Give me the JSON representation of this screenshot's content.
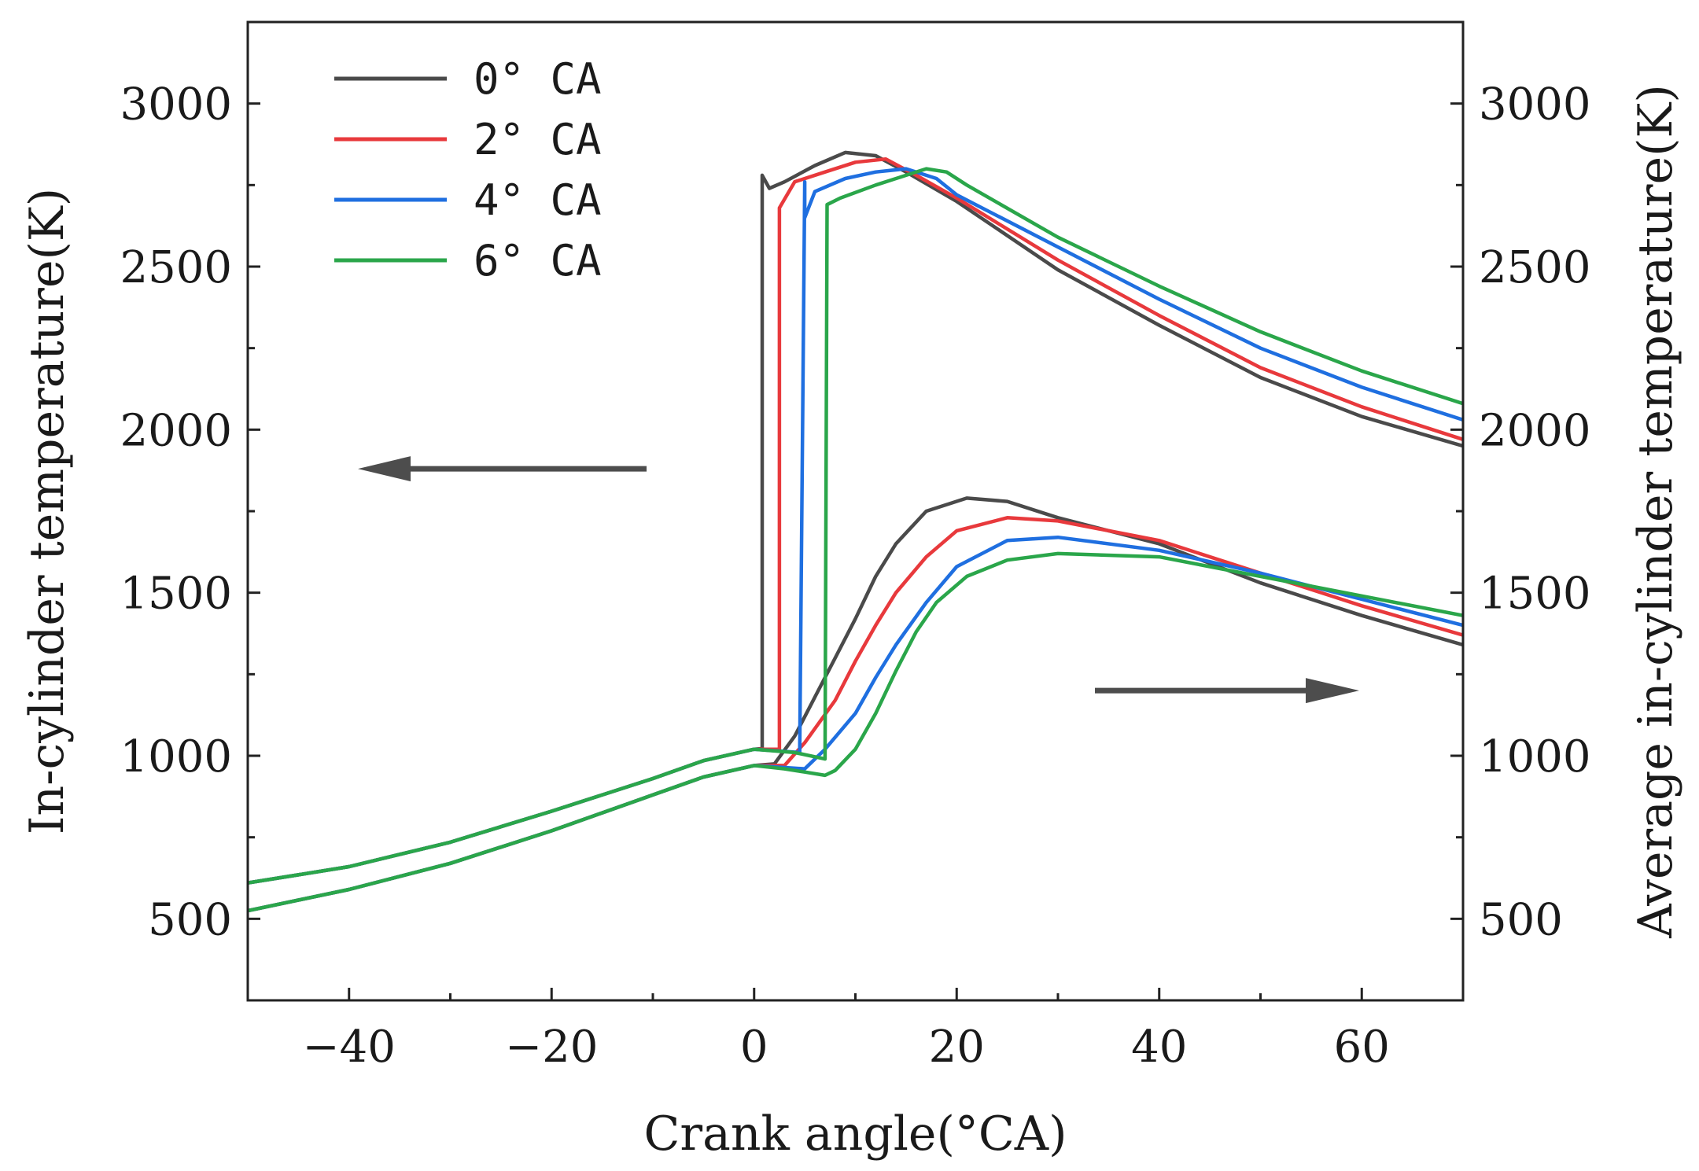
{
  "chart_data": {
    "type": "line",
    "xlabel": "Crank angle(°CA)",
    "ylabel_left": "In-cylinder temperature(K)",
    "ylabel_right": "Average in-cylinder temperature(K)",
    "xlim": [
      -50,
      70
    ],
    "ylim": [
      250,
      3250
    ],
    "x_ticks": [
      -40,
      -20,
      0,
      20,
      40,
      60
    ],
    "y_ticks": [
      500,
      1000,
      1500,
      2000,
      2500,
      3000
    ],
    "legend_position": "top-left",
    "annotations": [
      {
        "type": "arrow",
        "direction": "left",
        "meaning": "left axis"
      },
      {
        "type": "arrow",
        "direction": "right",
        "meaning": "right axis"
      }
    ],
    "series": [
      {
        "name": "0° CA",
        "color": "#4a4a4a",
        "upper": [
          [
            -50,
            610
          ],
          [
            -40,
            660
          ],
          [
            -30,
            735
          ],
          [
            -20,
            830
          ],
          [
            -10,
            930
          ],
          [
            -5,
            985
          ],
          [
            0,
            1020
          ],
          [
            0.8,
            1022
          ],
          [
            0.8,
            2780
          ],
          [
            1.5,
            2740
          ],
          [
            3,
            2760
          ],
          [
            6,
            2810
          ],
          [
            9,
            2850
          ],
          [
            12,
            2840
          ],
          [
            15,
            2790
          ],
          [
            20,
            2700
          ],
          [
            30,
            2490
          ],
          [
            40,
            2320
          ],
          [
            50,
            2160
          ],
          [
            60,
            2040
          ],
          [
            70,
            1950
          ]
        ],
        "lower": [
          [
            -50,
            525
          ],
          [
            -40,
            590
          ],
          [
            -30,
            670
          ],
          [
            -20,
            770
          ],
          [
            -10,
            880
          ],
          [
            -5,
            935
          ],
          [
            0,
            970
          ],
          [
            2,
            975
          ],
          [
            4,
            1060
          ],
          [
            6,
            1180
          ],
          [
            8,
            1300
          ],
          [
            10,
            1420
          ],
          [
            12,
            1550
          ],
          [
            14,
            1650
          ],
          [
            17,
            1750
          ],
          [
            21,
            1790
          ],
          [
            25,
            1780
          ],
          [
            30,
            1730
          ],
          [
            40,
            1650
          ],
          [
            50,
            1530
          ],
          [
            60,
            1430
          ],
          [
            70,
            1340
          ]
        ]
      },
      {
        "name": "2° CA",
        "color": "#e8393c",
        "upper": [
          [
            -50,
            610
          ],
          [
            -40,
            660
          ],
          [
            -30,
            735
          ],
          [
            -20,
            830
          ],
          [
            -10,
            930
          ],
          [
            -5,
            985
          ],
          [
            0,
            1020
          ],
          [
            2.5,
            1020
          ],
          [
            2.5,
            2680
          ],
          [
            4,
            2760
          ],
          [
            7,
            2790
          ],
          [
            10,
            2820
          ],
          [
            13,
            2830
          ],
          [
            16,
            2780
          ],
          [
            20,
            2710
          ],
          [
            30,
            2520
          ],
          [
            40,
            2350
          ],
          [
            50,
            2190
          ],
          [
            60,
            2070
          ],
          [
            70,
            1970
          ]
        ],
        "lower": [
          [
            -50,
            525
          ],
          [
            -40,
            590
          ],
          [
            -30,
            670
          ],
          [
            -20,
            770
          ],
          [
            -10,
            880
          ],
          [
            -5,
            935
          ],
          [
            0,
            970
          ],
          [
            3,
            970
          ],
          [
            5,
            1040
          ],
          [
            8,
            1170
          ],
          [
            10,
            1290
          ],
          [
            12,
            1400
          ],
          [
            14,
            1500
          ],
          [
            17,
            1610
          ],
          [
            20,
            1690
          ],
          [
            25,
            1730
          ],
          [
            30,
            1720
          ],
          [
            40,
            1660
          ],
          [
            50,
            1560
          ],
          [
            60,
            1460
          ],
          [
            70,
            1370
          ]
        ]
      },
      {
        "name": "4° CA",
        "color": "#1f6fe0",
        "upper": [
          [
            -50,
            610
          ],
          [
            -40,
            660
          ],
          [
            -30,
            735
          ],
          [
            -20,
            830
          ],
          [
            -10,
            930
          ],
          [
            -5,
            985
          ],
          [
            0,
            1020
          ],
          [
            4.5,
            1010
          ],
          [
            5,
            2760
          ],
          [
            5,
            2650
          ],
          [
            6,
            2730
          ],
          [
            9,
            2770
          ],
          [
            12,
            2790
          ],
          [
            15,
            2800
          ],
          [
            18,
            2770
          ],
          [
            20,
            2720
          ],
          [
            30,
            2560
          ],
          [
            40,
            2400
          ],
          [
            50,
            2250
          ],
          [
            60,
            2130
          ],
          [
            70,
            2030
          ]
        ],
        "lower": [
          [
            -50,
            525
          ],
          [
            -40,
            590
          ],
          [
            -30,
            670
          ],
          [
            -20,
            770
          ],
          [
            -10,
            880
          ],
          [
            -5,
            935
          ],
          [
            0,
            970
          ],
          [
            5,
            960
          ],
          [
            7,
            1020
          ],
          [
            10,
            1130
          ],
          [
            12,
            1240
          ],
          [
            14,
            1340
          ],
          [
            17,
            1470
          ],
          [
            20,
            1580
          ],
          [
            25,
            1660
          ],
          [
            30,
            1670
          ],
          [
            40,
            1630
          ],
          [
            50,
            1560
          ],
          [
            60,
            1480
          ],
          [
            70,
            1400
          ]
        ]
      },
      {
        "name": "6° CA",
        "color": "#2aa64a",
        "upper": [
          [
            -50,
            610
          ],
          [
            -40,
            660
          ],
          [
            -30,
            735
          ],
          [
            -20,
            830
          ],
          [
            -10,
            930
          ],
          [
            -5,
            985
          ],
          [
            0,
            1020
          ],
          [
            4,
            1010
          ],
          [
            7,
            990
          ],
          [
            7.2,
            2690
          ],
          [
            8.5,
            2710
          ],
          [
            12,
            2750
          ],
          [
            15,
            2780
          ],
          [
            17,
            2800
          ],
          [
            19,
            2790
          ],
          [
            21,
            2750
          ],
          [
            30,
            2590
          ],
          [
            40,
            2440
          ],
          [
            50,
            2300
          ],
          [
            60,
            2180
          ],
          [
            70,
            2080
          ]
        ],
        "lower": [
          [
            -50,
            525
          ],
          [
            -40,
            590
          ],
          [
            -30,
            670
          ],
          [
            -20,
            770
          ],
          [
            -10,
            880
          ],
          [
            -5,
            935
          ],
          [
            0,
            970
          ],
          [
            3,
            960
          ],
          [
            5,
            950
          ],
          [
            7,
            940
          ],
          [
            8,
            955
          ],
          [
            10,
            1020
          ],
          [
            12,
            1130
          ],
          [
            14,
            1260
          ],
          [
            16,
            1380
          ],
          [
            18,
            1470
          ],
          [
            21,
            1550
          ],
          [
            25,
            1600
          ],
          [
            30,
            1620
          ],
          [
            40,
            1610
          ],
          [
            50,
            1550
          ],
          [
            60,
            1490
          ],
          [
            70,
            1430
          ]
        ]
      }
    ]
  }
}
